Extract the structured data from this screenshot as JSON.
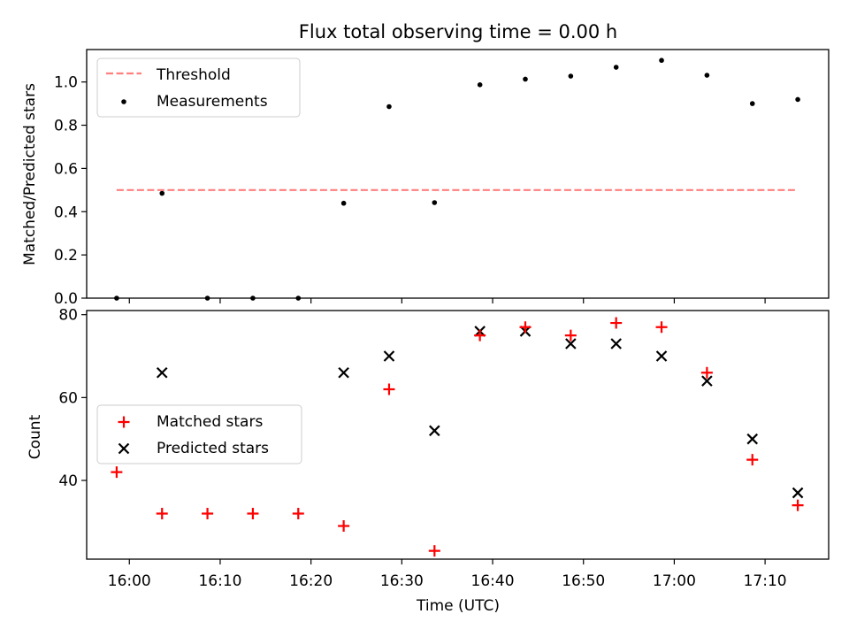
{
  "chart_data": [
    {
      "type": "scatter",
      "title": "Flux total observing time = 0.00 h",
      "xlabel": "",
      "ylabel": "Matched/Predicted stars",
      "ylim": [
        0,
        1.15
      ],
      "yticks": [
        "0.0",
        "0.2",
        "0.4",
        "0.6",
        "0.8",
        "1.0"
      ],
      "ytick_values": [
        0,
        0.2,
        0.4,
        0.6,
        0.8,
        1.0
      ],
      "legend_position": "top-left",
      "threshold": {
        "name": "Threshold",
        "value": 0.5,
        "x_start": 958.6,
        "x_end": 1033.6,
        "color": "#ff7f7f"
      },
      "series": [
        {
          "name": "Measurements",
          "marker": "dot",
          "color": "#000000",
          "x": [
            958.6,
            963.6,
            968.6,
            973.6,
            978.6,
            983.6,
            988.6,
            993.6,
            998.6,
            1003.6,
            1008.6,
            1013.6,
            1018.6,
            1023.6,
            1028.6,
            1033.6
          ],
          "y": [
            0.0,
            0.485,
            0.0,
            0.0,
            0.0,
            0.439,
            0.886,
            0.442,
            0.987,
            1.013,
            1.027,
            1.068,
            1.1,
            1.031,
            0.9,
            0.919
          ]
        }
      ]
    },
    {
      "type": "scatter",
      "title": "",
      "xlabel": "Time (UTC)",
      "ylabel": "Count",
      "ylim": [
        21,
        81
      ],
      "yticks": [
        "40",
        "60",
        "80"
      ],
      "ytick_values": [
        40,
        60,
        80
      ],
      "xlim": [
        955.3,
        1037.0
      ],
      "xticks": [
        "16:00",
        "16:10",
        "16:20",
        "16:30",
        "16:40",
        "16:50",
        "17:00",
        "17:10"
      ],
      "xtick_values": [
        960,
        970,
        980,
        990,
        1000,
        1010,
        1020,
        1030
      ],
      "legend_position": "center-left",
      "series": [
        {
          "name": "Matched stars",
          "marker": "plus",
          "color": "#ff0000",
          "x": [
            958.6,
            963.6,
            968.6,
            973.6,
            978.6,
            983.6,
            988.6,
            993.6,
            998.6,
            1003.6,
            1008.6,
            1013.6,
            1018.6,
            1023.6,
            1028.6,
            1033.6
          ],
          "y": [
            42,
            32,
            32,
            32,
            32,
            29,
            62,
            23,
            75,
            77,
            75,
            78,
            77,
            66,
            45,
            34
          ]
        },
        {
          "name": "Predicted stars",
          "marker": "x",
          "color": "#000000",
          "x": [
            963.6,
            983.6,
            988.6,
            993.6,
            998.6,
            1003.6,
            1008.6,
            1013.6,
            1018.6,
            1023.6,
            1028.6,
            1033.6
          ],
          "y": [
            66,
            66,
            70,
            52,
            76,
            76,
            73,
            73,
            70,
            64,
            50,
            37
          ]
        }
      ]
    }
  ]
}
